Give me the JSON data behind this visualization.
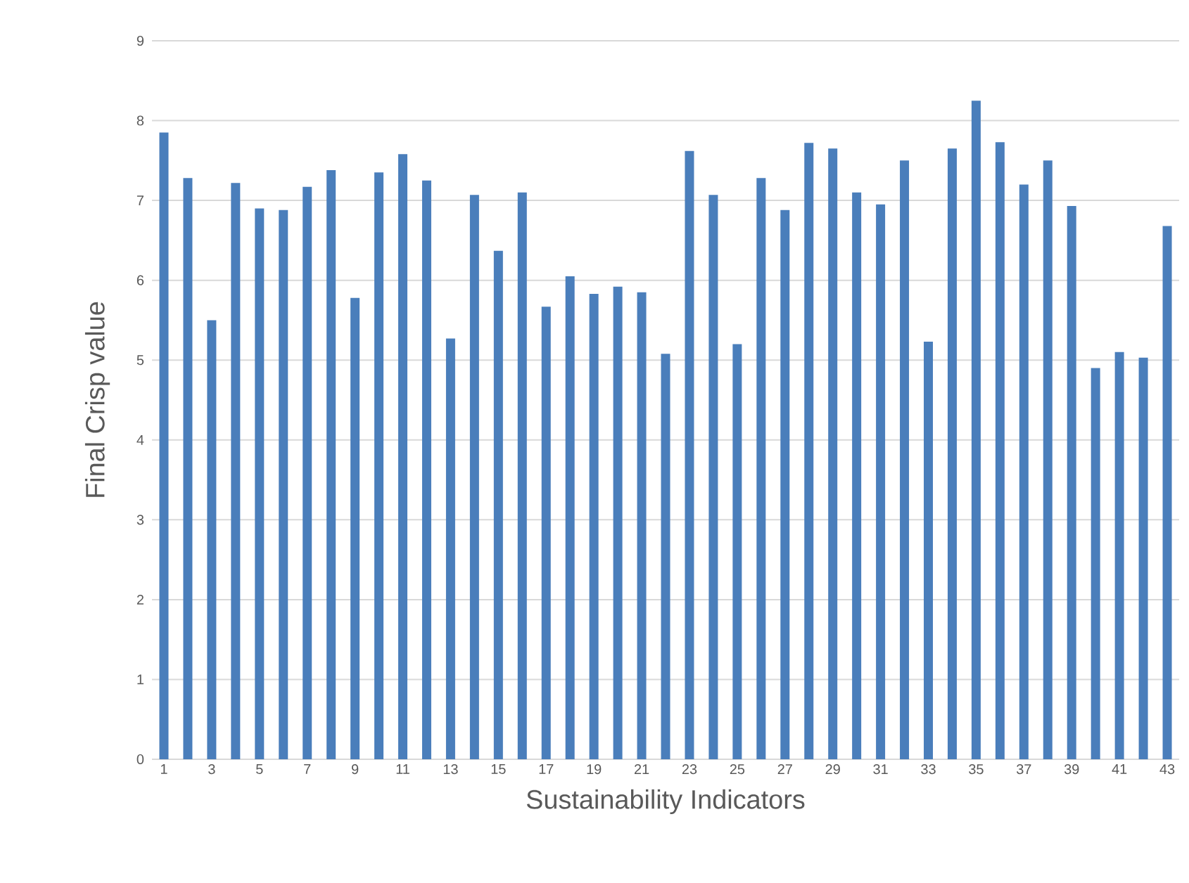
{
  "chart_data": {
    "type": "bar",
    "xlabel": "Sustainability Indicators",
    "ylabel": "Final Crisp value",
    "categories": [
      "1",
      null,
      "3",
      null,
      "5",
      null,
      "7",
      null,
      "9",
      null,
      "11",
      null,
      "13",
      null,
      "15",
      null,
      "17",
      null,
      "19",
      null,
      "21",
      null,
      "23",
      null,
      "25",
      null,
      "27",
      null,
      "29",
      null,
      "31",
      null,
      "33",
      null,
      "35",
      null,
      "37",
      null,
      "39",
      null,
      "41",
      null,
      "43"
    ],
    "values": [
      7.85,
      7.28,
      5.5,
      7.22,
      6.9,
      6.88,
      7.17,
      7.38,
      5.78,
      7.35,
      7.58,
      7.25,
      5.27,
      7.07,
      6.37,
      7.1,
      5.67,
      6.05,
      5.83,
      5.92,
      5.85,
      5.08,
      7.62,
      7.07,
      5.2,
      7.28,
      6.88,
      7.72,
      7.65,
      7.1,
      6.95,
      7.5,
      5.23,
      7.65,
      8.25,
      7.73,
      7.2,
      7.5,
      6.93,
      4.9,
      5.1,
      5.03,
      6.68
    ],
    "color": "#4a7ebb",
    "ylim": [
      0,
      9
    ],
    "yticks": [
      0,
      1,
      2,
      3,
      4,
      5,
      6,
      7,
      8,
      9
    ],
    "grid": "y"
  }
}
